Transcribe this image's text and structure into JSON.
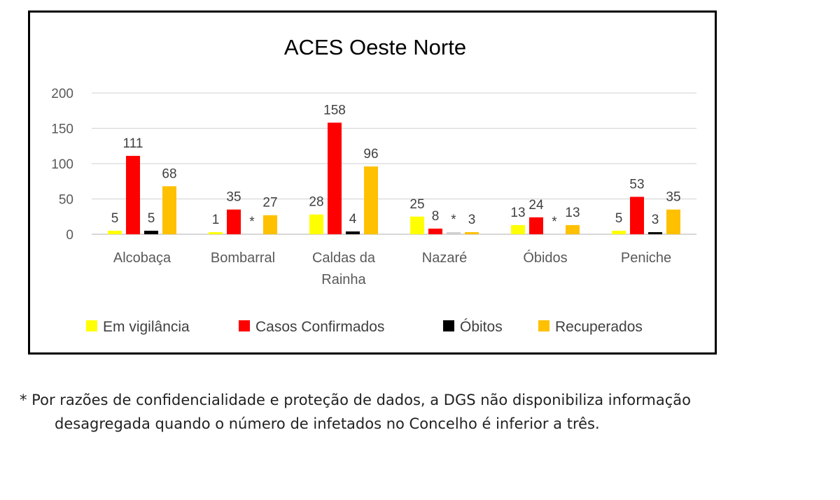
{
  "chart_data": {
    "type": "bar",
    "title": "ACES Oeste Norte",
    "categories": [
      "Alcobaça",
      "Bombarral",
      "Caldas da Rainha",
      "Nazaré",
      "Óbidos",
      "Peniche"
    ],
    "category_lines": [
      [
        "Alcobaça"
      ],
      [
        "Bombarral"
      ],
      [
        "Caldas da",
        "Rainha"
      ],
      [
        "Nazaré"
      ],
      [
        "Óbidos"
      ],
      [
        "Peniche"
      ]
    ],
    "series": [
      {
        "name": "Em vigilância",
        "color": "#ffff00",
        "values": [
          5,
          1,
          28,
          25,
          13,
          5
        ],
        "labels": [
          "5",
          "1",
          "28",
          "25",
          "13",
          "5"
        ]
      },
      {
        "name": "Casos Confirmados",
        "color": "#ff0000",
        "values": [
          111,
          35,
          158,
          8,
          24,
          53
        ],
        "labels": [
          "111",
          "35",
          "158",
          "8",
          "24",
          "53"
        ]
      },
      {
        "name": "Óbitos",
        "color": "#000000",
        "values": [
          5,
          0,
          4,
          2,
          0,
          3
        ],
        "labels": [
          "5",
          "*",
          "4",
          "*",
          "*",
          "3"
        ]
      },
      {
        "name": "Recuperados",
        "color": "#ffc000",
        "values": [
          68,
          27,
          96,
          3,
          13,
          35
        ],
        "labels": [
          "68",
          "27",
          "96",
          "3",
          "13",
          "35"
        ]
      }
    ],
    "ylim": [
      0,
      200
    ],
    "yticks": [
      0,
      50,
      100,
      150,
      200
    ],
    "grid": true,
    "legend_position": "bottom"
  },
  "footnote": {
    "line1": "* Por razões de confidencialidade e proteção de dados, a DGS não disponibiliza informação",
    "line2": "desagregada quando o número de infetados no Concelho é inferior a três."
  }
}
